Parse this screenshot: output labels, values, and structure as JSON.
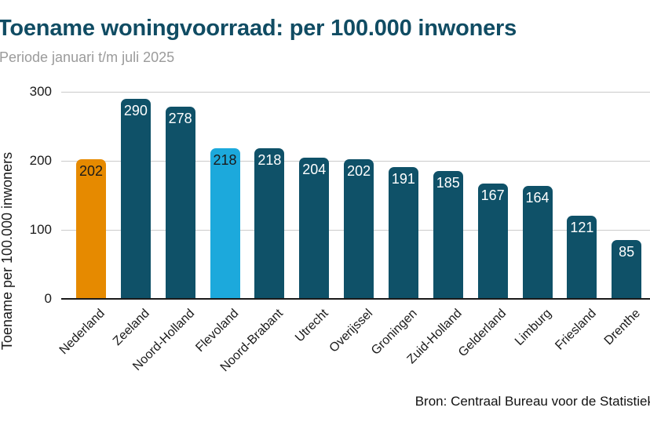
{
  "header": {
    "title": "Toename woningvoorraad: per 100.000 inwoners",
    "subtitle": "Periode januari t/m juli 2025"
  },
  "footer": {
    "source": "Bron: Centraal Bureau voor de Statistiek"
  },
  "chart_data": {
    "type": "bar",
    "title": "Toename woningvoorraad: per 100.000 inwoners",
    "subtitle": "Periode januari t/m juli 2025",
    "xlabel": "",
    "ylabel": "Toename per 100.000 inwoners",
    "categories": [
      "Nederland",
      "Zeeland",
      "Noord-Holland",
      "Flevoland",
      "Noord-Brabant",
      "Utrecht",
      "Overijssel",
      "Groningen",
      "Zuid-Holland",
      "Gelderland",
      "Limburg",
      "Friesland",
      "Drenthe"
    ],
    "values": [
      202,
      290,
      278,
      218,
      218,
      204,
      202,
      191,
      185,
      167,
      164,
      121,
      85
    ],
    "bar_colors": [
      "#E68A00",
      "#0F5168",
      "#0F5168",
      "#1CA9DC",
      "#0F5168",
      "#0F5168",
      "#0F5168",
      "#0F5168",
      "#0F5168",
      "#0F5168",
      "#0F5168",
      "#0F5168",
      "#0F5168"
    ],
    "value_label_colors": [
      "#1A1A1A",
      "#FFFFFF",
      "#FFFFFF",
      "#1A1A1A",
      "#FFFFFF",
      "#FFFFFF",
      "#FFFFFF",
      "#FFFFFF",
      "#FFFFFF",
      "#FFFFFF",
      "#FFFFFF",
      "#FFFFFF",
      "#FFFFFF"
    ],
    "ylim": [
      0,
      300
    ],
    "yticks": [
      0,
      100,
      200,
      300
    ],
    "grid": true,
    "legend": "none",
    "x_tick_rotation_deg": 45,
    "colors": {
      "default_bar": "#0F5168",
      "highlight_orange": "#E68A00",
      "highlight_blue": "#1CA9DC",
      "title": "#104C63",
      "subtitle": "#9B9B9B",
      "gridline": "#CBCBCB",
      "axis_line": "#1A1A1A"
    }
  }
}
